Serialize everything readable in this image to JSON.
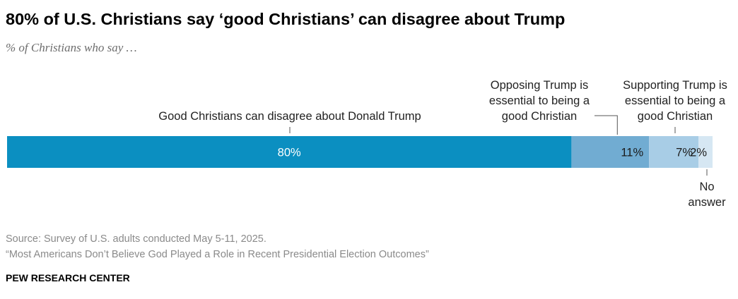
{
  "header": {
    "title": "80% of U.S. Christians say ‘good Christians’ can disagree about Trump",
    "subtitle": "% of Christians who say …"
  },
  "footer": {
    "source": "Source: Survey of U.S. adults conducted May 5-11, 2025.",
    "report": "“Most Americans Don’t Believe God Played a Role in Recent Presidential Election Outcomes”",
    "brand": "PEW RESEARCH CENTER"
  },
  "chart_data": {
    "type": "bar",
    "orientation": "horizontal-stacked",
    "title": "80% of U.S. Christians say ‘good Christians’ can disagree about Trump",
    "subtitle": "% of Christians who say …",
    "xlim": [
      0,
      100
    ],
    "grid": false,
    "legend": "none (direct labels)",
    "series": [
      {
        "name": "Good Christians can disagree about Donald Trump",
        "value": 80,
        "label": "80%",
        "color": "#0b8fc1",
        "label_color": "#ffffff",
        "annotation": [
          "Good Christians can disagree about Donald Trump"
        ],
        "annotation_position": "above"
      },
      {
        "name": "Opposing Trump is essential to being a good Christian",
        "value": 11,
        "label": "11%",
        "color": "#71acd2",
        "label_color": "#1a1a1a",
        "annotation": [
          "Opposing Trump is",
          "essential to being a",
          "good Christian"
        ],
        "annotation_position": "above"
      },
      {
        "name": "Supporting Trump is essential to being a good Christian",
        "value": 7,
        "label": "7%",
        "color": "#a8cde6",
        "label_color": "#1a1a1a",
        "annotation": [
          "Supporting Trump is",
          "essential to being a",
          "good Christian"
        ],
        "annotation_position": "above"
      },
      {
        "name": "No answer",
        "value": 2,
        "label": "2%",
        "color": "#d6e7f3",
        "label_color": "#1a1a1a",
        "annotation": [
          "No",
          "answer"
        ],
        "annotation_position": "below"
      }
    ]
  }
}
